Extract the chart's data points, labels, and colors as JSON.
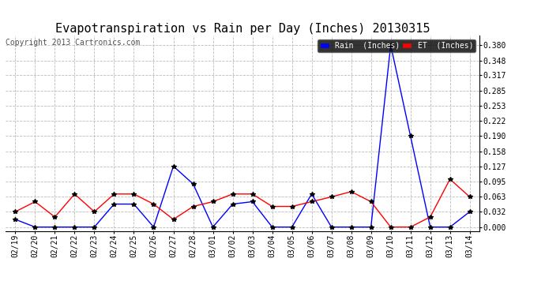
{
  "title": "Evapotranspiration vs Rain per Day (Inches) 20130315",
  "copyright": "Copyright 2013 Cartronics.com",
  "x_labels": [
    "02/19",
    "02/20",
    "02/21",
    "02/22",
    "02/23",
    "02/24",
    "02/25",
    "02/26",
    "02/27",
    "02/28",
    "03/01",
    "03/02",
    "03/03",
    "03/04",
    "03/05",
    "03/06",
    "03/07",
    "03/08",
    "03/09",
    "03/10",
    "03/11",
    "03/12",
    "03/13",
    "03/14"
  ],
  "rain_values": [
    0.016,
    0.0,
    0.0,
    0.0,
    0.0,
    0.048,
    0.048,
    0.0,
    0.127,
    0.09,
    0.0,
    0.048,
    0.053,
    0.0,
    0.0,
    0.069,
    0.0,
    0.0,
    0.0,
    0.38,
    0.19,
    0.0,
    0.0,
    0.032
  ],
  "et_values": [
    0.032,
    0.053,
    0.021,
    0.069,
    0.032,
    0.069,
    0.069,
    0.048,
    0.016,
    0.043,
    0.053,
    0.069,
    0.069,
    0.043,
    0.043,
    0.053,
    0.063,
    0.074,
    0.053,
    0.0,
    0.0,
    0.021,
    0.1,
    0.063
  ],
  "rain_color": "#0000ff",
  "et_color": "#ff0000",
  "marker_color": "#000000",
  "bg_color": "#ffffff",
  "grid_color": "#bbbbbb",
  "title_fontsize": 11,
  "copyright_fontsize": 7,
  "tick_fontsize": 7,
  "yticks": [
    0.0,
    0.032,
    0.063,
    0.095,
    0.127,
    0.158,
    0.19,
    0.222,
    0.253,
    0.285,
    0.317,
    0.348,
    0.38
  ],
  "ylim": [
    -0.008,
    0.4
  ],
  "legend_rain_label": "Rain  (Inches)",
  "legend_et_label": "ET  (Inches)"
}
